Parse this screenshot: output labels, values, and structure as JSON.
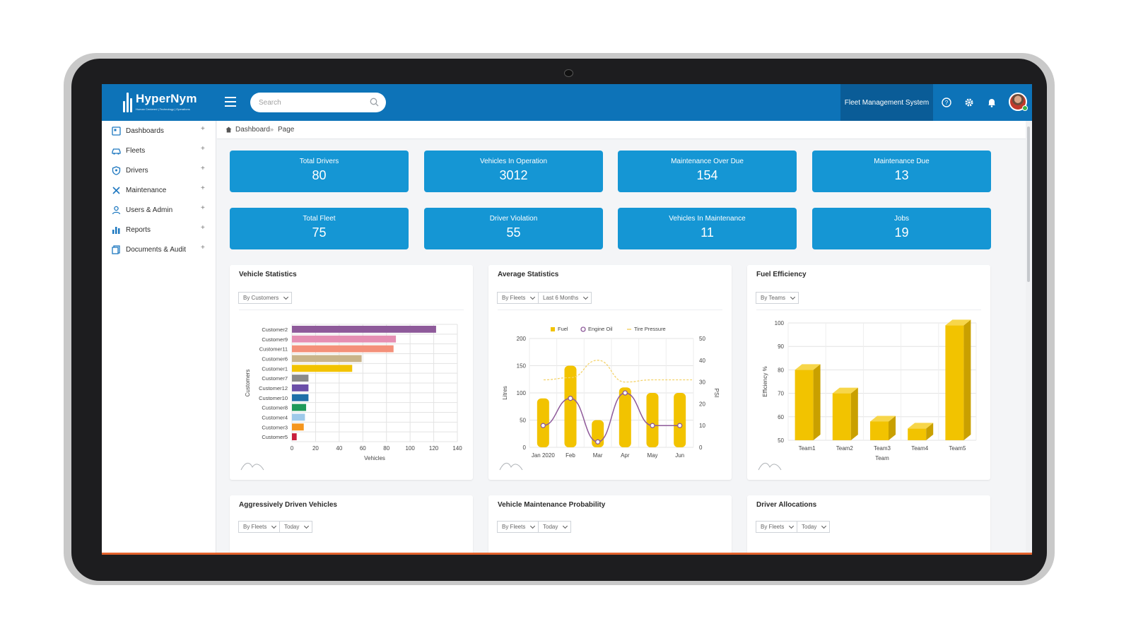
{
  "topbar": {
    "logo_name": "HyperNym",
    "logo_tagline": "Human Centered | Technology | Operations",
    "search_placeholder": "Search",
    "app_name": "Fleet Management System"
  },
  "sidebar": {
    "items": [
      {
        "label": "Dashboards"
      },
      {
        "label": "Fleets"
      },
      {
        "label": "Drivers"
      },
      {
        "label": "Maintenance"
      },
      {
        "label": "Users & Admin"
      },
      {
        "label": "Reports"
      },
      {
        "label": "Documents & Audit"
      }
    ],
    "expand_symbol": "+"
  },
  "breadcrumb": {
    "home": "Dashboard",
    "separator": "»",
    "current": "Page"
  },
  "kpis": [
    {
      "label": "Total Drivers",
      "value": "80"
    },
    {
      "label": "Vehicles In Operation",
      "value": "3012"
    },
    {
      "label": "Maintenance Over Due",
      "value": "154"
    },
    {
      "label": "Maintenance Due",
      "value": "13"
    },
    {
      "label": "Total Fleet",
      "value": "75"
    },
    {
      "label": "Driver Violation",
      "value": "55"
    },
    {
      "label": "Vehicles In Maintenance",
      "value": "11"
    },
    {
      "label": "Jobs",
      "value": "19"
    }
  ],
  "cards": {
    "vehicle_statistics": {
      "title": "Vehicle Statistics",
      "filters": [
        "By Customers"
      ]
    },
    "average_statistics": {
      "title": "Average Statistics",
      "filters": [
        "By Fleets",
        "Last 6 Months"
      ]
    },
    "fuel_efficiency": {
      "title": "Fuel Efficiency",
      "filters": [
        "By Teams"
      ]
    },
    "aggressive": {
      "title": "Aggressively Driven Vehicles",
      "filters": [
        "By Fleets",
        "Today"
      ]
    },
    "maint_prob": {
      "title": "Vehicle Maintenance Probability",
      "filters": [
        "By Fleets",
        "Today"
      ]
    },
    "driver_alloc": {
      "title": "Driver Allocations",
      "filters": [
        "By Fleets",
        "Today"
      ]
    }
  },
  "chart_data": [
    {
      "type": "bar",
      "orientation": "horizontal",
      "categories": [
        "Customer2",
        "Customer9",
        "Customer11",
        "Customer6",
        "Customer1",
        "Customer7",
        "Customer12",
        "Customer10",
        "Customer8",
        "Customer4",
        "Customer3",
        "Customer5"
      ],
      "values": [
        122,
        88,
        86,
        59,
        51,
        14,
        14,
        14,
        12,
        11,
        10,
        4
      ],
      "colors": [
        "#8e5a9a",
        "#e58fb3",
        "#f4907a",
        "#c9b48a",
        "#f2c300",
        "#8a8a8a",
        "#6b4fa8",
        "#1e6fa8",
        "#1f9a5a",
        "#9ec9ea",
        "#f5961e",
        "#c81e3c"
      ],
      "xlabel": "Vehicles",
      "ylabel": "Customers",
      "xlim": [
        0,
        140
      ],
      "xticks": [
        0,
        20,
        40,
        60,
        80,
        100,
        120,
        140
      ],
      "grid": true
    },
    {
      "type": "bar",
      "categories": [
        "Jan 2020",
        "Feb",
        "Mar",
        "Apr",
        "May",
        "Jun"
      ],
      "series": [
        {
          "name": "Fuel",
          "type": "bar",
          "axis": "left",
          "values": [
            90,
            150,
            50,
            110,
            100,
            100
          ],
          "color": "#f2c300"
        },
        {
          "name": "Engine Oil",
          "type": "line",
          "axis": "left",
          "values": [
            40,
            90,
            10,
            100,
            40,
            40
          ],
          "color": "#8e5a9a"
        },
        {
          "name": "Tire Pressure",
          "type": "line",
          "axis": "right",
          "values": [
            31,
            32,
            40,
            30,
            31,
            31
          ],
          "color": "#f4d36a",
          "dashed": true
        }
      ],
      "ylabel": "Litres",
      "y2label": "PSI",
      "ylim": [
        0,
        200
      ],
      "yticks": [
        0,
        50,
        100,
        150,
        200
      ],
      "y2lim": [
        0,
        50
      ],
      "y2ticks": [
        0,
        10,
        20,
        30,
        40,
        50
      ],
      "legend": "top",
      "grid": true
    },
    {
      "type": "bar",
      "style": "3d",
      "categories": [
        "Team1",
        "Team2",
        "Team3",
        "Team4",
        "Team5"
      ],
      "values": [
        80,
        70,
        58,
        55,
        99
      ],
      "color": "#f2c300",
      "xlabel": "Team",
      "ylabel": "Efficiency %",
      "ylim": [
        50,
        100
      ],
      "yticks": [
        50,
        60,
        70,
        80,
        90,
        100
      ],
      "grid": true
    }
  ],
  "colors": {
    "primary": "#0d73b8",
    "kpi": "#1596d4",
    "app_badge": "#0a5c97",
    "accent_line": "#e3622c"
  }
}
